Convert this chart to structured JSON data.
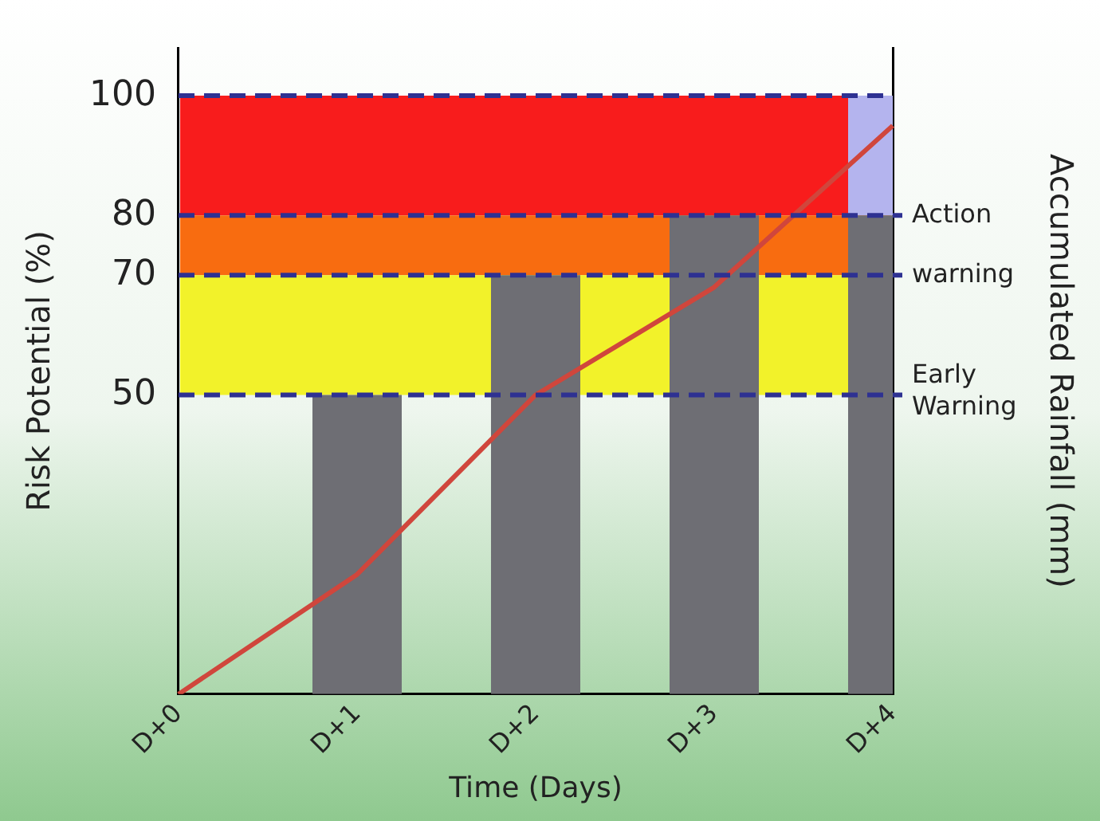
{
  "chart_data": {
    "type": "bar",
    "xlabel": "Time (Days)",
    "ylabel": "Risk Potential (%)",
    "y2label": "Accumulated Rainfall (mm)",
    "categories": [
      "D+0",
      "D+1",
      "D+2",
      "D+3",
      "D+4"
    ],
    "stacked": true,
    "series": [
      {
        "color": "#6e6e74",
        "values": [
          null,
          50,
          70,
          80,
          80
        ]
      },
      {
        "color": "#b4b4ee",
        "values": [
          null,
          null,
          null,
          null,
          20
        ]
      },
      {
        "type": "line",
        "color": "#d0463c",
        "values": [
          0,
          20,
          50,
          68,
          95
        ]
      }
    ],
    "ylim": [
      0,
      108
    ],
    "yticks": [
      50,
      70,
      80,
      100
    ],
    "bands": [
      {
        "axis": "y",
        "from": 80,
        "to": 100,
        "color": "#f81c1c"
      },
      {
        "axis": "y",
        "from": 70,
        "to": 80,
        "color": "#f86c10"
      },
      {
        "axis": "y",
        "from": 50,
        "to": 70,
        "color": "#f2f22a"
      }
    ],
    "ref_lines": [
      {
        "axis": "y",
        "value": 100,
        "label": null,
        "color": "#2e3192",
        "line_style": "dashed"
      },
      {
        "axis": "y",
        "value": 80,
        "label": "Action",
        "color": "#2e3192",
        "line_style": "dashed"
      },
      {
        "axis": "y",
        "value": 70,
        "label": "warning",
        "color": "#2e3192",
        "line_style": "dashed"
      },
      {
        "axis": "y",
        "value": 50,
        "label": "Early Warning",
        "color": "#2e3192",
        "line_style": "dashed"
      }
    ],
    "grid": false,
    "legend": false,
    "marker": "none"
  }
}
